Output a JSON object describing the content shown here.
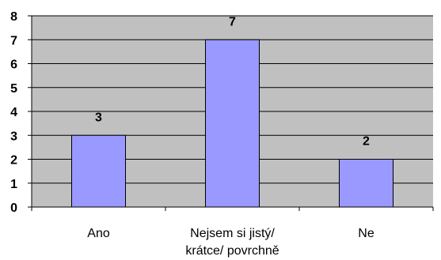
{
  "chart_data": {
    "type": "bar",
    "categories": [
      {
        "lines": [
          "Ano"
        ]
      },
      {
        "lines": [
          "Nejsem si jistý/",
          "krátce/ povrchně"
        ]
      },
      {
        "lines": [
          "Ne"
        ]
      }
    ],
    "values": [
      3,
      7,
      2
    ],
    "data_labels": [
      "3",
      "7",
      "2"
    ],
    "ylim": [
      0,
      8
    ],
    "yticks": [
      "0",
      "1",
      "2",
      "3",
      "4",
      "5",
      "6",
      "7",
      "8"
    ],
    "title": "",
    "xlabel": "",
    "ylabel": "",
    "grid": true,
    "legend": "none",
    "colors": {
      "plot_background": "#c0c0c0",
      "bar_fill": "#9999ff",
      "bar_stroke": "#000000",
      "gridline": "#000000",
      "axis": "#000000"
    }
  }
}
